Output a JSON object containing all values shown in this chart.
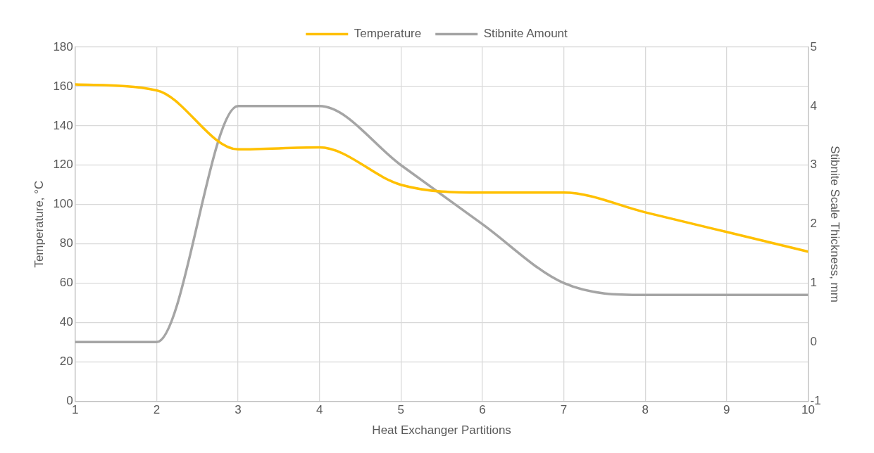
{
  "chart_data": {
    "type": "line",
    "xlabel": "Heat Exchanger Partitions",
    "ylabel": "Temperature, °C",
    "y2label": "Stibnite Scale Thickness, mm",
    "x": [
      1,
      2,
      3,
      4,
      5,
      6,
      7,
      8,
      9,
      10
    ],
    "series": [
      {
        "name": "Temperature",
        "color": "#ffc000",
        "values": [
          161,
          158,
          128,
          129,
          110,
          106,
          106,
          96,
          86,
          76
        ]
      },
      {
        "name": "Stibnite Amount",
        "color": "#a5a5a5",
        "axis": "y2",
        "values": [
          0,
          0,
          4.0,
          4.0,
          3.0,
          2.0,
          1.0,
          0.8,
          0.8,
          0.8
        ]
      }
    ],
    "xlim": [
      1,
      10
    ],
    "xticks": [
      1,
      2,
      3,
      4,
      5,
      6,
      7,
      8,
      9,
      10
    ],
    "ylim": [
      0,
      180
    ],
    "yticks": [
      0,
      20,
      40,
      60,
      80,
      100,
      120,
      140,
      160,
      180
    ],
    "y2lim": [
      -1,
      5
    ],
    "y2ticks": [
      -1,
      0,
      1,
      2,
      3,
      4,
      5
    ],
    "grid": true,
    "legend": "top",
    "marker": "none",
    "line_style": "solid"
  }
}
